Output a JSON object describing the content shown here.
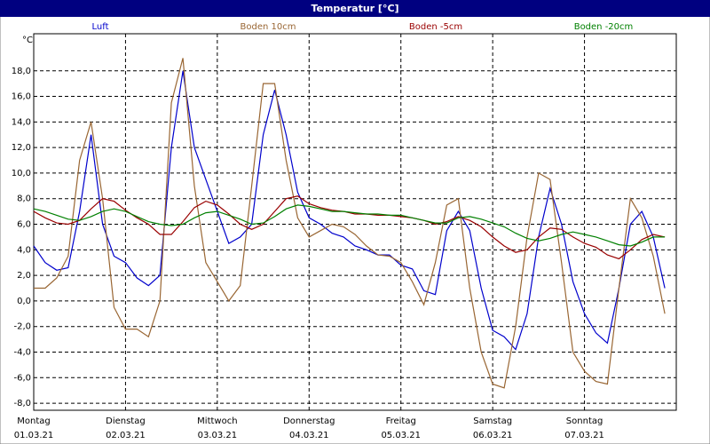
{
  "chart_data": {
    "type": "line",
    "title": "Temperatur [°C]",
    "y_unit": "°C",
    "x": [
      0,
      0.125,
      0.25,
      0.375,
      0.5,
      0.625,
      0.75,
      0.875,
      1,
      1.125,
      1.25,
      1.375,
      1.5,
      1.625,
      1.75,
      1.875,
      2,
      2.125,
      2.25,
      2.375,
      2.5,
      2.625,
      2.75,
      2.875,
      3,
      3.125,
      3.25,
      3.375,
      3.5,
      3.625,
      3.75,
      3.875,
      4,
      4.125,
      4.25,
      4.375,
      4.5,
      4.625,
      4.75,
      4.875,
      5,
      5.125,
      5.25,
      5.375,
      5.5,
      5.625,
      5.75,
      5.875,
      6,
      6.125,
      6.25,
      6.375,
      6.5,
      6.625,
      6.75,
      6.875
    ],
    "series": [
      {
        "name": "Luft",
        "color": "#0000cc",
        "values": [
          4.3,
          3.0,
          2.4,
          2.6,
          7,
          13,
          6,
          3.5,
          3,
          1.8,
          1.2,
          2,
          12,
          18,
          12,
          9.5,
          7,
          4.5,
          5,
          6,
          13,
          16.5,
          13,
          8.5,
          6.5,
          6,
          5.3,
          5,
          4.3,
          4,
          3.6,
          3.6,
          2.8,
          2.5,
          0.8,
          0.5,
          5.5,
          7,
          5.5,
          1,
          -2.3,
          -2.8,
          -3.8,
          -1,
          5,
          8.8,
          6,
          1.5,
          -1,
          -2.5,
          -3.3,
          1,
          6,
          7,
          5,
          1
        ]
      },
      {
        "name": "Boden 10cm",
        "color": "#996633",
        "values": [
          1,
          1,
          1.8,
          3.5,
          11,
          14,
          8,
          -0.5,
          -2.2,
          -2.2,
          -2.8,
          0,
          15.5,
          19,
          9,
          3,
          1.5,
          0,
          1.2,
          9,
          17,
          17,
          11,
          6.5,
          5,
          5.5,
          6,
          5.8,
          5.2,
          4.3,
          3.6,
          3.5,
          3,
          1.5,
          -0.3,
          3,
          7.5,
          8,
          1,
          -4,
          -6.5,
          -6.8,
          -2,
          5,
          10,
          9.5,
          3,
          -4,
          -5.5,
          -6.3,
          -6.5,
          1,
          8,
          6.5,
          3.5,
          -1
        ]
      },
      {
        "name": "Boden -5cm",
        "color": "#990000",
        "values": [
          7,
          6.5,
          6.1,
          6,
          6.3,
          7.2,
          8,
          7.8,
          7.1,
          6.5,
          6,
          5.2,
          5.2,
          6.2,
          7.3,
          7.8,
          7.5,
          6.8,
          6,
          5.6,
          6,
          7,
          8,
          8.2,
          7.6,
          7.3,
          7.1,
          7,
          6.8,
          6.8,
          6.7,
          6.7,
          6.6,
          6.5,
          6.3,
          6,
          6.2,
          6.6,
          6.3,
          5.8,
          5,
          4.3,
          3.8,
          4,
          5,
          5.7,
          5.6,
          5,
          4.5,
          4.2,
          3.6,
          3.3,
          4,
          4.8,
          5.2,
          5
        ]
      },
      {
        "name": "Boden -20cm",
        "color": "#008000",
        "values": [
          7.2,
          7,
          6.7,
          6.4,
          6.3,
          6.6,
          7,
          7.2,
          7,
          6.6,
          6.2,
          6,
          5.9,
          6,
          6.5,
          6.9,
          7,
          6.7,
          6.4,
          6,
          6.1,
          6.6,
          7.2,
          7.5,
          7.4,
          7.2,
          7,
          7,
          6.9,
          6.8,
          6.8,
          6.7,
          6.7,
          6.5,
          6.3,
          6.1,
          6.1,
          6.5,
          6.6,
          6.4,
          6.1,
          5.8,
          5.3,
          4.9,
          4.7,
          4.9,
          5.2,
          5.4,
          5.2,
          5,
          4.7,
          4.4,
          4.3,
          4.6,
          5,
          5
        ]
      }
    ],
    "xlim": [
      0,
      7
    ],
    "xticks": [
      {
        "value": 0,
        "label": "Montag"
      },
      {
        "value": 1,
        "label": "Dienstag"
      },
      {
        "value": 2,
        "label": "Mittwoch"
      },
      {
        "value": 3,
        "label": "Donnerstag"
      },
      {
        "value": 4,
        "label": "Freitag"
      },
      {
        "value": 5,
        "label": "Samstag"
      },
      {
        "value": 6,
        "label": "Sonntag"
      }
    ],
    "xtick_dates": [
      "01.03.21",
      "02.03.21",
      "03.03.21",
      "04.03.21",
      "05.03.21",
      "06.03.21",
      "07.03.21"
    ],
    "ylim": [
      -8.55,
      20.9
    ],
    "yticks": [
      {
        "value": -8,
        "label": "-8,0"
      },
      {
        "value": -6,
        "label": "-6,0"
      },
      {
        "value": -4,
        "label": "-4,0"
      },
      {
        "value": -2,
        "label": "-2,0"
      },
      {
        "value": 0,
        "label": "0,0"
      },
      {
        "value": 2,
        "label": "2,0"
      },
      {
        "value": 4,
        "label": "4,0"
      },
      {
        "value": 6,
        "label": "6,0"
      },
      {
        "value": 8,
        "label": "8,0"
      },
      {
        "value": 10,
        "label": "10,0"
      },
      {
        "value": 12,
        "label": "12,0"
      },
      {
        "value": 14,
        "label": "14,0"
      },
      {
        "value": 16,
        "label": "16,0"
      },
      {
        "value": 18,
        "label": "18,0"
      }
    ],
    "grid": true
  }
}
